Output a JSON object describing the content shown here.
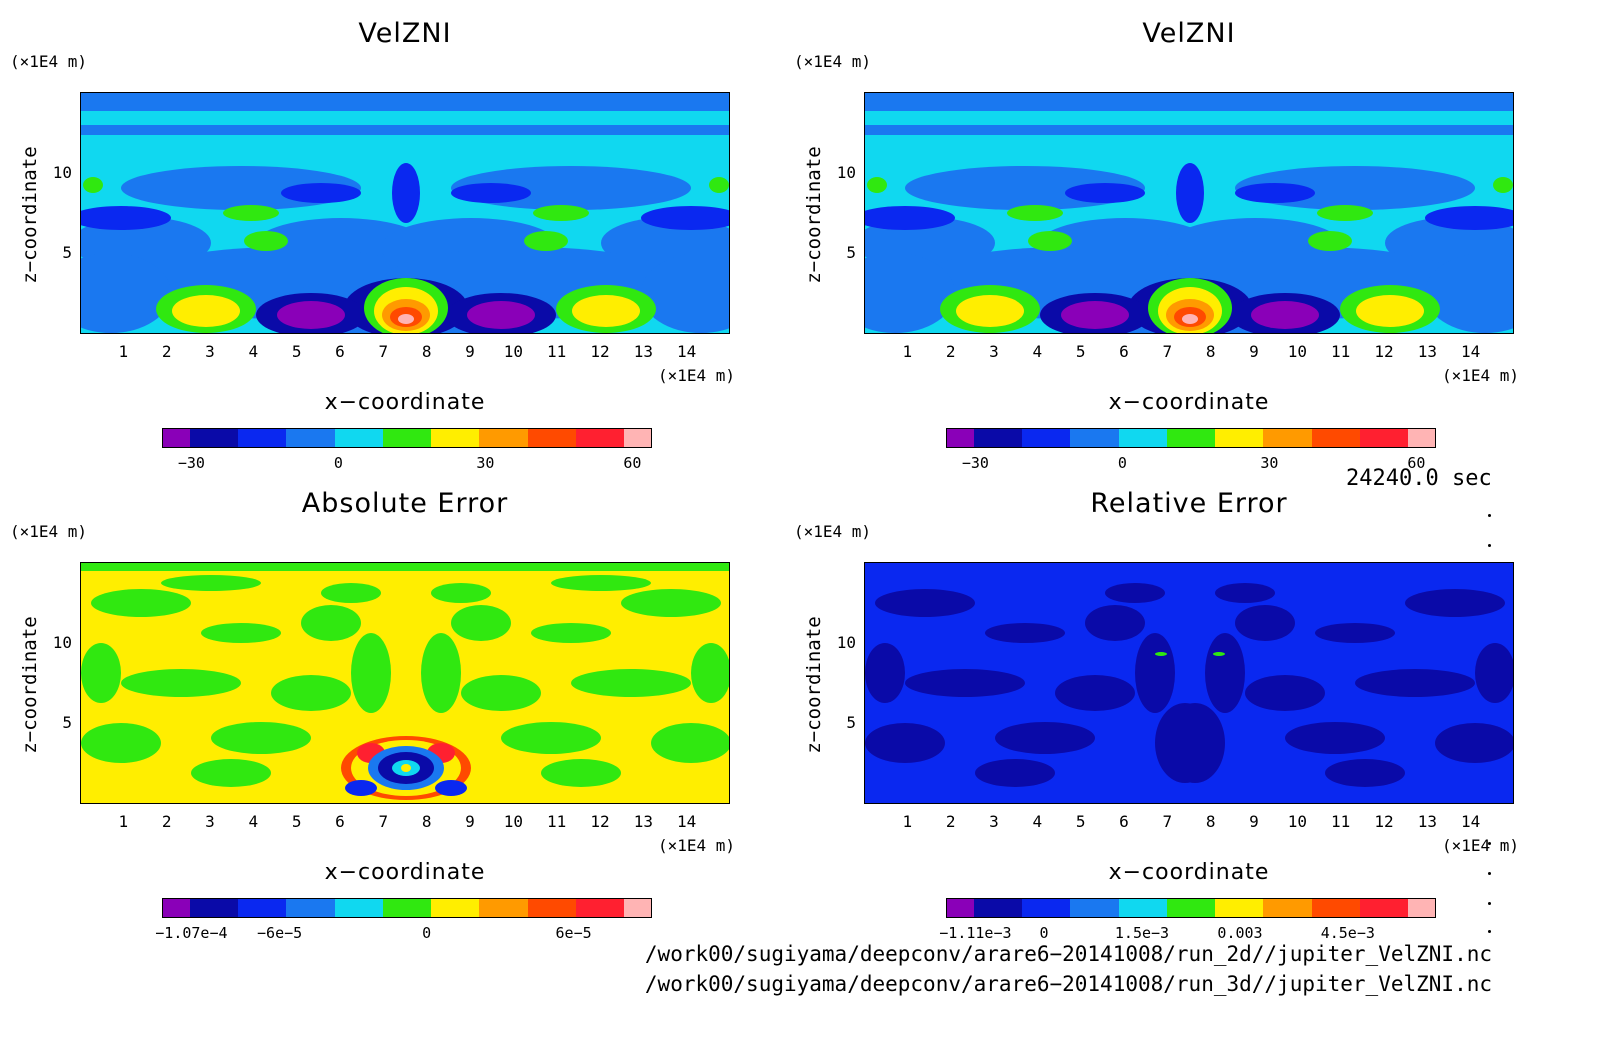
{
  "panels": [
    {
      "title": "VelZNI",
      "xlabel": "x−coordinate",
      "ylabel": "z−coordinate",
      "unit_top": "(×1E4 m)",
      "unit_x": "(×1E4 m)",
      "colorbar": {
        "colors": [
          "#8a00b8",
          "#0a0aa8",
          "#0a28f0",
          "#1a78f0",
          "#10d8f0",
          "#30e810",
          "#ffee00",
          "#ff9a00",
          "#ff4a00",
          "#ff2030",
          "#ffb4b4"
        ],
        "labels": [
          "−30",
          "0",
          "30",
          "60"
        ]
      }
    },
    {
      "title": "VelZNI",
      "xlabel": "x−coordinate",
      "ylabel": "z−coordinate",
      "unit_top": "(×1E4 m)",
      "unit_x": "(×1E4 m)",
      "colorbar": {
        "colors": [
          "#8a00b8",
          "#0a0aa8",
          "#0a28f0",
          "#1a78f0",
          "#10d8f0",
          "#30e810",
          "#ffee00",
          "#ff9a00",
          "#ff4a00",
          "#ff2030",
          "#ffb4b4"
        ],
        "labels": [
          "−30",
          "0",
          "30",
          "60"
        ]
      }
    },
    {
      "title": "Absolute Error",
      "xlabel": "x−coordinate",
      "ylabel": "z−coordinate",
      "unit_top": "(×1E4 m)",
      "unit_x": "(×1E4 m)",
      "colorbar": {
        "colors": [
          "#8a00b8",
          "#0a0aa8",
          "#0a28f0",
          "#1a78f0",
          "#10d8f0",
          "#30e810",
          "#ffee00",
          "#ff9a00",
          "#ff4a00",
          "#ff2030",
          "#ffb4b4"
        ],
        "labels": [
          "−1.07e−4",
          "−6e−5",
          "0",
          "6e−5"
        ]
      }
    },
    {
      "title": "Relative Error",
      "xlabel": "x−coordinate",
      "ylabel": "z−coordinate",
      "unit_top": "(×1E4 m)",
      "unit_x": "(×1E4 m)",
      "colorbar": {
        "colors": [
          "#8a00b8",
          "#0a0aa8",
          "#0a28f0",
          "#1a78f0",
          "#10d8f0",
          "#30e810",
          "#ffee00",
          "#ff9a00",
          "#ff4a00",
          "#ff2030",
          "#ffb4b4"
        ],
        "labels": [
          "−1.11e−3",
          "0",
          "1.5e−3",
          "0.003",
          "4.5e−3"
        ]
      }
    }
  ],
  "axes": {
    "x_ticks": [
      "1",
      "2",
      "3",
      "4",
      "5",
      "6",
      "7",
      "8",
      "9",
      "10",
      "11",
      "12",
      "13",
      "14"
    ],
    "y_ticks": [
      "5",
      "10"
    ],
    "xlim": [
      0,
      15
    ],
    "ylim": [
      0,
      15
    ]
  },
  "chart_data": [
    {
      "type": "heatmap",
      "title": "VelZNI",
      "xlabel": "x−coordinate",
      "ylabel": "z−coordinate",
      "xlim": [
        0,
        15
      ],
      "ylim": [
        0,
        15
      ],
      "colorbar_ticks": [
        -30,
        0,
        30,
        60
      ]
    },
    {
      "type": "heatmap",
      "title": "VelZNI",
      "xlabel": "x−coordinate",
      "ylabel": "z−coordinate",
      "xlim": [
        0,
        15
      ],
      "ylim": [
        0,
        15
      ],
      "colorbar_ticks": [
        -30,
        0,
        30,
        60
      ]
    },
    {
      "type": "heatmap",
      "title": "Absolute Error",
      "xlabel": "x−coordinate",
      "ylabel": "z−coordinate",
      "xlim": [
        0,
        15
      ],
      "ylim": [
        0,
        15
      ],
      "colorbar_ticks": [
        -0.000107,
        -6e-05,
        0,
        6e-05
      ]
    },
    {
      "type": "heatmap",
      "title": "Relative Error",
      "xlabel": "x−coordinate",
      "ylabel": "z−coordinate",
      "xlim": [
        0,
        15
      ],
      "ylim": [
        0,
        15
      ],
      "colorbar_ticks": [
        -0.00111,
        0,
        0.0015,
        0.003,
        0.0045
      ]
    }
  ],
  "time_label": "24240.0 sec",
  "files": [
    "/work00/sugiyama/deepconv/arare6−20141008/run_2d//jupiter_VelZNI.nc",
    "/work00/sugiyama/deepconv/arare6−20141008/run_3d//jupiter_VelZNI.nc"
  ]
}
